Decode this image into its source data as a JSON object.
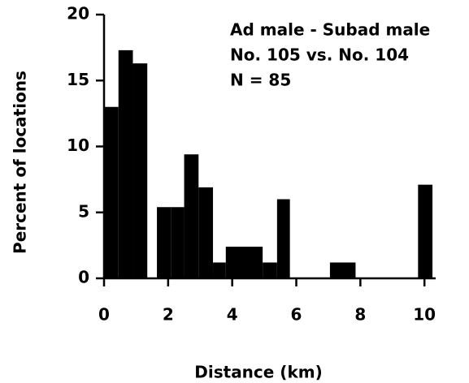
{
  "chart_data": {
    "type": "histogram",
    "annotations": [
      "Ad male - Subad male",
      "No. 105 vs. No. 104",
      "N = 85"
    ],
    "x_label": "Distance (km)",
    "y_label": "Percent of locations",
    "bins": [
      0,
      0.45,
      0.9,
      1.35,
      1.65,
      2.1,
      2.5,
      2.95,
      3.4,
      3.8,
      4.95,
      5.4,
      5.8,
      7.05,
      7.85,
      9.8,
      10.25
    ],
    "values": [
      13,
      17.3,
      16.3,
      0,
      5.4,
      5.4,
      9.4,
      6.9,
      1.2,
      2.4,
      1.2,
      6,
      0,
      1.2,
      0,
      7.1
    ],
    "color": "#000000",
    "xlim": [
      0,
      10.35
    ],
    "xticks": [
      0,
      2,
      4,
      6,
      8,
      10
    ],
    "ylim": [
      0,
      20
    ],
    "yticks": [
      0,
      5,
      10,
      15,
      20
    ]
  }
}
